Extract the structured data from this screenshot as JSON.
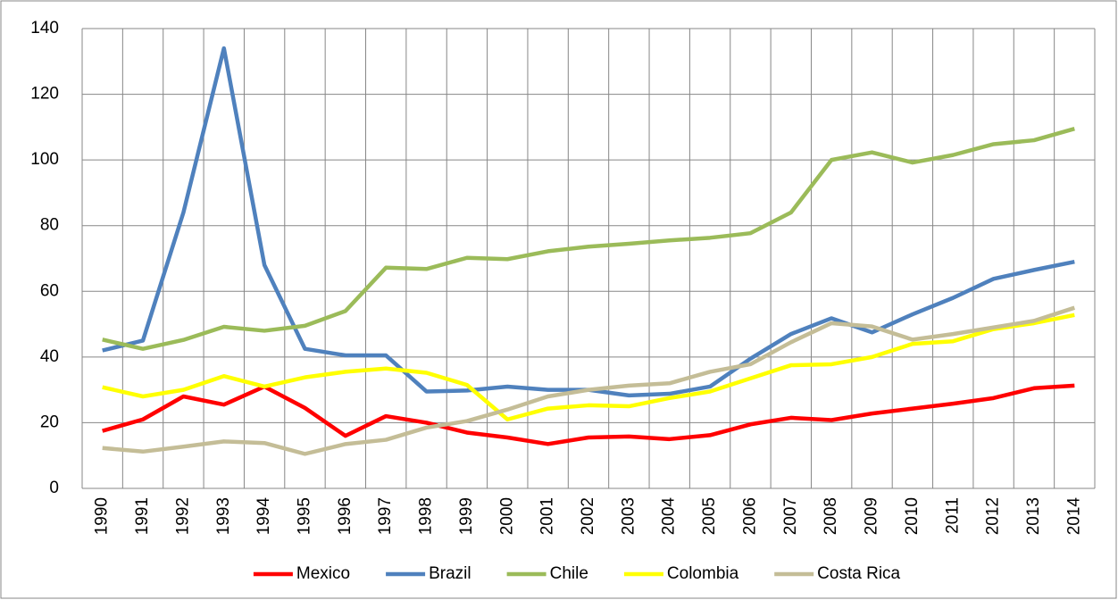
{
  "chart_data": {
    "type": "line",
    "categories": [
      "1990",
      "1991",
      "1992",
      "1993",
      "1994",
      "1995",
      "1996",
      "1997",
      "1998",
      "1999",
      "2000",
      "2001",
      "2002",
      "2003",
      "2004",
      "2005",
      "2006",
      "2007",
      "2008",
      "2009",
      "2010",
      "2011",
      "2012",
      "2013",
      "2014"
    ],
    "series": [
      {
        "name": "Mexico",
        "color": "#ff0000",
        "values": [
          17.5,
          21,
          28,
          25.5,
          31,
          24.5,
          16,
          22,
          20,
          17,
          15.5,
          13.5,
          15.5,
          15.8,
          15,
          16.2,
          19.5,
          21.5,
          20.8,
          22.8,
          24.3,
          25.8,
          27.5,
          30.5,
          31.3
        ]
      },
      {
        "name": "Brazil",
        "color": "#4f81bd",
        "values": [
          42,
          45,
          84,
          134,
          68,
          42.5,
          40.5,
          40.5,
          29.5,
          29.8,
          31,
          30,
          30,
          28.3,
          28.8,
          31,
          39.5,
          47,
          51.8,
          47.5,
          53,
          58,
          63.8,
          66.5,
          69
        ]
      },
      {
        "name": "Chile",
        "color": "#9bbb59",
        "values": [
          45.3,
          42.5,
          45.2,
          49.2,
          48,
          49.5,
          54,
          67.2,
          66.8,
          70.2,
          69.8,
          72.2,
          73.6,
          74.5,
          75.5,
          76.3,
          77.7,
          84,
          100,
          102.3,
          99.2,
          101.5,
          104.8,
          106,
          109.5
        ]
      },
      {
        "name": "Colombia",
        "color": "#ffff00",
        "values": [
          30.8,
          28,
          30,
          34.2,
          31,
          33.8,
          35.5,
          36.5,
          35.2,
          31.5,
          21,
          24.3,
          25.3,
          25,
          27.5,
          29.5,
          33.5,
          37.5,
          37.8,
          40,
          44,
          44.8,
          48.5,
          50.3,
          52.8
        ]
      },
      {
        "name": "Costa Rica",
        "color": "#c4bd97",
        "values": [
          12.3,
          11.2,
          12.7,
          14.3,
          13.8,
          10.5,
          13.5,
          14.8,
          18.5,
          20.5,
          24,
          28,
          30,
          31.3,
          32,
          35.5,
          37.8,
          44.5,
          50.3,
          49.3,
          45.3,
          47,
          49,
          51,
          55
        ]
      }
    ],
    "ylim": [
      0,
      140
    ],
    "yticks": [
      0,
      20,
      40,
      60,
      80,
      100,
      120,
      140
    ],
    "grid": true,
    "legend": "bottom"
  }
}
